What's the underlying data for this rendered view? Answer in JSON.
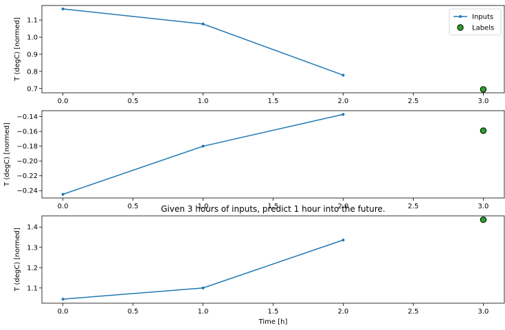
{
  "chart_data": [
    {
      "type": "line",
      "title": "",
      "xlabel": "",
      "ylabel": "T (degC) [normed]",
      "xlim": [
        -0.15,
        3.15
      ],
      "ylim": [
        0.675,
        1.185
      ],
      "xticks": [
        0.0,
        0.5,
        1.0,
        1.5,
        2.0,
        2.5,
        3.0
      ],
      "xtick_labels": [
        "0.0",
        "0.5",
        "1.0",
        "1.5",
        "2.0",
        "2.5",
        "3.0"
      ],
      "yticks": [
        0.7,
        0.8,
        0.9,
        1.0,
        1.1
      ],
      "ytick_labels": [
        "0.7",
        "0.8",
        "0.9",
        "1.0",
        "1.1"
      ],
      "legend": true,
      "legend_position": "top-right",
      "series": [
        {
          "name": "Inputs",
          "kind": "line",
          "color": "#1f77b4",
          "x": [
            0,
            1,
            2
          ],
          "y": [
            1.165,
            1.077,
            0.778
          ]
        },
        {
          "name": "Labels",
          "kind": "scatter",
          "color": "#2ca02c",
          "x": [
            3
          ],
          "y": [
            0.695
          ]
        }
      ]
    },
    {
      "type": "line",
      "title": "",
      "xlabel": "",
      "ylabel": "T (degC) [normed]",
      "xlim": [
        -0.15,
        3.15
      ],
      "ylim": [
        -0.25,
        -0.132
      ],
      "xticks": [
        0.0,
        0.5,
        1.0,
        1.5,
        2.0,
        2.5,
        3.0
      ],
      "xtick_labels": [
        "0.0",
        "0.5",
        "1.0",
        "1.5",
        "2.0",
        "2.5",
        "3.0"
      ],
      "yticks": [
        -0.24,
        -0.22,
        -0.2,
        -0.18,
        -0.16,
        -0.14
      ],
      "ytick_labels": [
        "−0.24",
        "−0.22",
        "−0.20",
        "−0.18",
        "−0.16",
        "−0.14"
      ],
      "legend": false,
      "series": [
        {
          "name": "Inputs",
          "kind": "line",
          "color": "#1f77b4",
          "x": [
            0,
            1,
            2
          ],
          "y": [
            -0.245,
            -0.18,
            -0.137
          ]
        },
        {
          "name": "Labels",
          "kind": "scatter",
          "color": "#2ca02c",
          "x": [
            3
          ],
          "y": [
            -0.159
          ]
        }
      ]
    },
    {
      "type": "line",
      "title": "Given 3 hours of inputs, predict 1 hour into the future.",
      "xlabel": "Time [h]",
      "ylabel": "T (degC) [normed]",
      "xlim": [
        -0.15,
        3.15
      ],
      "ylim": [
        1.025,
        1.455
      ],
      "xticks": [
        0.0,
        0.5,
        1.0,
        1.5,
        2.0,
        2.5,
        3.0
      ],
      "xtick_labels": [
        "0.0",
        "0.5",
        "1.0",
        "1.5",
        "2.0",
        "2.5",
        "3.0"
      ],
      "yticks": [
        1.1,
        1.2,
        1.3,
        1.4
      ],
      "ytick_labels": [
        "1.1",
        "1.2",
        "1.3",
        "1.4"
      ],
      "legend": false,
      "series": [
        {
          "name": "Inputs",
          "kind": "line",
          "color": "#1f77b4",
          "x": [
            0,
            1,
            2
          ],
          "y": [
            1.045,
            1.1,
            1.336
          ]
        },
        {
          "name": "Labels",
          "kind": "scatter",
          "color": "#2ca02c",
          "x": [
            3
          ],
          "y": [
            1.436
          ]
        }
      ]
    }
  ]
}
